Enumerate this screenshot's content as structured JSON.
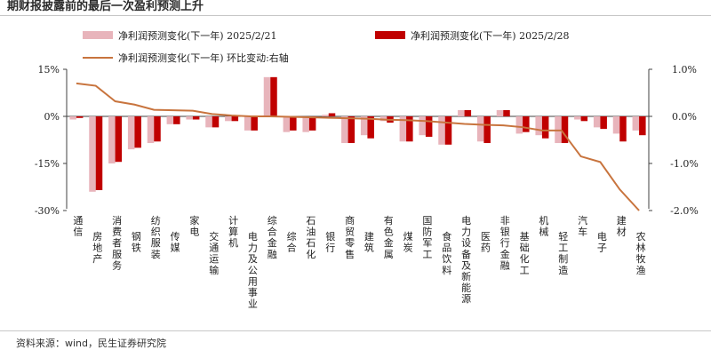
{
  "title": "期财报披露前的最后一次盈利预测上升",
  "source": "资料来源：wind，民生证券研究院",
  "colors": {
    "series1": "#e8b4bb",
    "series2": "#c00000",
    "series3": "#c8743e",
    "axis": "#404040"
  },
  "chart_data": {
    "type": "bar",
    "categories": [
      "通信",
      "房地产",
      "消费者服务",
      "钢铁",
      "纺织服装",
      "传媒",
      "家电",
      "交通运输",
      "计算机",
      "电力及公用事业",
      "综合金融",
      "综合",
      "石油石化",
      "银行",
      "商贸零售",
      "建筑",
      "有色金属",
      "煤炭",
      "国防军工",
      "食品饮料",
      "电力设备及新能源",
      "医药",
      "非银行金融",
      "基础化工",
      "机械",
      "轻工制造",
      "汽车",
      "电子",
      "建材",
      "农林牧渔"
    ],
    "series": [
      {
        "name": "净利润预测变化(下一年) 2025/2/21",
        "axis": "left",
        "type": "bar",
        "values": [
          -1.0,
          -24.0,
          -15.0,
          -10.5,
          -8.5,
          -2.5,
          -1.0,
          -3.5,
          -1.5,
          -4.5,
          12.5,
          -5.0,
          -5.0,
          0.5,
          -8.5,
          -6.0,
          -1.5,
          -8.0,
          -6.0,
          -9.0,
          2.0,
          -8.0,
          2.0,
          -5.5,
          -6.0,
          -8.5,
          -1.0,
          -3.5,
          -5.5,
          -4.5
        ]
      },
      {
        "name": "净利润预测变化(下一年) 2025/2/28",
        "axis": "left",
        "type": "bar",
        "values": [
          -0.5,
          -23.5,
          -14.5,
          -10.0,
          -8.0,
          -2.5,
          -1.0,
          -3.5,
          -1.5,
          -4.5,
          12.5,
          -4.5,
          -4.5,
          1.0,
          -8.5,
          -7.0,
          -2.0,
          -8.0,
          -6.5,
          -9.0,
          2.0,
          -8.5,
          2.0,
          -5.0,
          -7.0,
          -8.5,
          -1.5,
          -4.0,
          -8.0,
          -6.0
        ]
      },
      {
        "name": "净利润预测变化(下一年) 环比变动:右轴",
        "axis": "right",
        "type": "line",
        "values": [
          0.7,
          0.65,
          0.32,
          0.25,
          0.14,
          0.13,
          0.12,
          0.05,
          0.02,
          0.0,
          0.0,
          -0.01,
          -0.02,
          -0.03,
          -0.04,
          -0.05,
          -0.07,
          -0.08,
          -0.1,
          -0.13,
          -0.16,
          -0.18,
          -0.19,
          -0.23,
          -0.3,
          -0.3,
          -0.85,
          -0.97,
          -1.55,
          -2.0
        ]
      }
    ],
    "yleft": {
      "ticks": [
        15,
        0,
        -15,
        -30
      ],
      "tick_labels": [
        "15%",
        "0%",
        "-15%",
        "-30%"
      ],
      "lim": [
        -30,
        15
      ]
    },
    "yright": {
      "ticks": [
        1,
        0,
        -1,
        -2
      ],
      "tick_labels": [
        "1.0%",
        "0.0%",
        "-1.0%",
        "-2.0%"
      ],
      "lim": [
        -2,
        1
      ]
    },
    "legend_position": "top"
  }
}
